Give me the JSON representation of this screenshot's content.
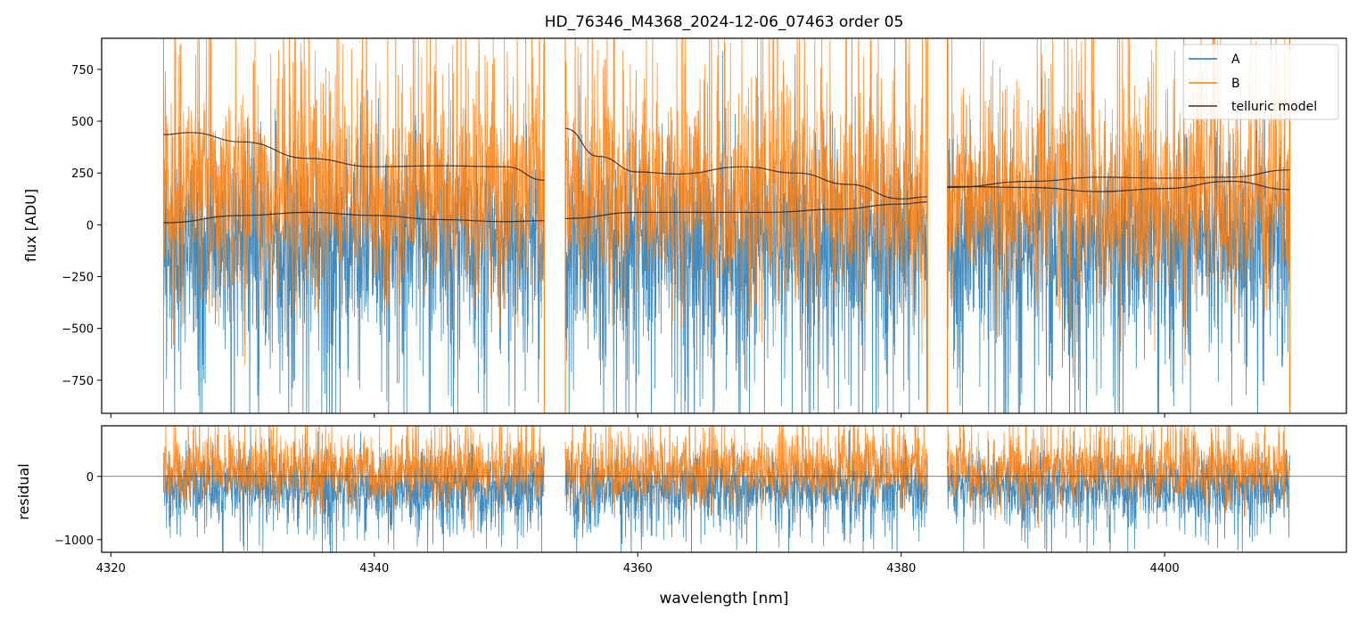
{
  "figure": {
    "title": "HD_76346_M4368_2024-12-06_07463  order 05",
    "xlabel": "wavelength [nm]"
  },
  "colors": {
    "A": "#1f77b4",
    "B": "#ff7f0e",
    "telluric": "#222222",
    "axes": "#000000"
  },
  "legend": {
    "location": "top-right",
    "entries": [
      "A",
      "B",
      "telluric model"
    ]
  },
  "chart_data": [
    {
      "type": "line",
      "panel": "flux",
      "ylabel": "flux [ADU]",
      "xlim": [
        4319.3,
        4413.8
      ],
      "ylim": [
        -910,
        900
      ],
      "xticks": [
        4320,
        4340,
        4360,
        4380,
        4400
      ],
      "yticks": [
        -750,
        -500,
        -250,
        0,
        250,
        500,
        750
      ],
      "ytick_labels": [
        "−750",
        "−500",
        "−250",
        "0",
        "250",
        "500",
        "750"
      ],
      "segments": [
        {
          "x_start": 4324.0,
          "x_end": 4352.9
        },
        {
          "x_start": 4354.5,
          "x_end": 4382.0
        },
        {
          "x_start": 4383.5,
          "x_end": 4409.5
        }
      ],
      "series": [
        {
          "name": "A",
          "note": "noisy spectrum centered near 0, heavy negative tail",
          "typical_range": [
            -900,
            600
          ]
        },
        {
          "name": "B",
          "note": "noisy spectrum centered near 100, heavy positive tail",
          "typical_range": [
            -500,
            900
          ]
        },
        {
          "name": "telluric model",
          "curves": [
            {
              "x": [
                4324,
                4326,
                4330,
                4335,
                4340,
                4345,
                4350,
                4352.9
              ],
              "y": [
                435,
                445,
                400,
                320,
                280,
                285,
                280,
                215
              ]
            },
            {
              "x": [
                4324,
                4330,
                4335,
                4340,
                4345,
                4350,
                4352.9
              ],
              "y": [
                10,
                45,
                60,
                45,
                25,
                15,
                20
              ]
            },
            {
              "x": [
                4354.5,
                4357,
                4360,
                4363,
                4368,
                4372,
                4376,
                4380,
                4382
              ],
              "y": [
                465,
                330,
                255,
                245,
                280,
                250,
                195,
                125,
                135
              ]
            },
            {
              "x": [
                4354.5,
                4360,
                4365,
                4370,
                4375,
                4380,
                4382
              ],
              "y": [
                30,
                60,
                60,
                60,
                75,
                100,
                110
              ]
            },
            {
              "x": [
                4383.5,
                4390,
                4395,
                4400,
                4405,
                4409.5
              ],
              "y": [
                185,
                180,
                160,
                175,
                210,
                170
              ]
            },
            {
              "x": [
                4383.5,
                4390,
                4395,
                4400,
                4405,
                4409.5
              ],
              "y": [
                180,
                210,
                230,
                225,
                230,
                265
              ]
            }
          ]
        }
      ]
    },
    {
      "type": "line",
      "panel": "residual",
      "ylabel": "residual",
      "xlim": [
        4319.3,
        4413.8
      ],
      "ylim": [
        -1200,
        800
      ],
      "yticks": [
        -1000,
        0
      ],
      "ytick_labels": [
        "−1000",
        "0"
      ],
      "zero_line": true,
      "segments": [
        {
          "x_start": 4324.0,
          "x_end": 4352.9
        },
        {
          "x_start": 4354.5,
          "x_end": 4382.0
        },
        {
          "x_start": 4383.5,
          "x_end": 4409.5
        }
      ],
      "series": [
        {
          "name": "A",
          "typical_range": [
            -1200,
            400
          ]
        },
        {
          "name": "B",
          "typical_range": [
            -400,
            800
          ]
        }
      ]
    }
  ]
}
